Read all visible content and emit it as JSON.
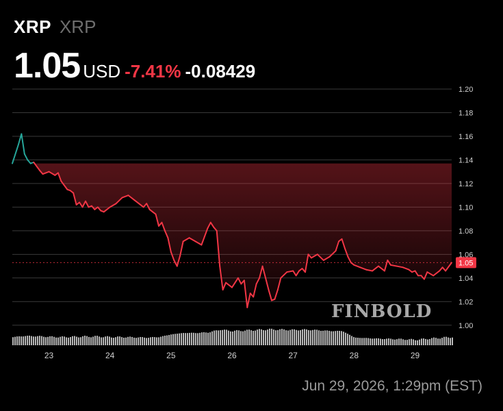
{
  "header": {
    "symbol": "XRP",
    "name": "XRP",
    "price": "1.05",
    "currency": "USD",
    "change_pct": "-7.41%",
    "change_abs": "-0.08429"
  },
  "timestamp": "Jun 29, 2026, 1:29pm (EST)",
  "watermark": "FINBOLD",
  "colors": {
    "background": "#000000",
    "down": "#f23645",
    "up": "#26a69a",
    "grid": "#3a3a3a",
    "volume": "#d9d9d9"
  },
  "chart_data": {
    "type": "line",
    "ylim": [
      0.99,
      1.2
    ],
    "yticks": [
      "1.20",
      "1.18",
      "1.16",
      "1.14",
      "1.12",
      "1.10",
      "1.08",
      "1.06",
      "1.04",
      "1.02",
      "1.00"
    ],
    "ytick_values": [
      1.2,
      1.18,
      1.16,
      1.14,
      1.12,
      1.1,
      1.08,
      1.06,
      1.04,
      1.02,
      1.0
    ],
    "xlim": [
      22.4,
      29.6
    ],
    "xticks": [
      "23",
      "24",
      "25",
      "26",
      "27",
      "28",
      "29"
    ],
    "xtick_values": [
      23,
      24,
      25,
      26,
      27,
      28,
      29
    ],
    "last_value": 1.053,
    "last_label": "1.05",
    "reference_value": 1.137,
    "grid": true,
    "series": [
      {
        "x": [
          22.4,
          22.5,
          22.55,
          22.6,
          22.65,
          22.7,
          22.75,
          22.85,
          22.9,
          23.0,
          23.1,
          23.15,
          23.2,
          23.3,
          23.35,
          23.4,
          23.45,
          23.5,
          23.55,
          23.6,
          23.65,
          23.7,
          23.75,
          23.8,
          23.85,
          23.9,
          24.0,
          24.1,
          24.2,
          24.3,
          24.4,
          24.5,
          24.55,
          24.6,
          24.65,
          24.7,
          24.75,
          24.8,
          24.85,
          24.9,
          24.95,
          25.0,
          25.05,
          25.1,
          25.15,
          25.2,
          25.3,
          25.4,
          25.5,
          25.55,
          25.6,
          25.65,
          25.7,
          25.75,
          25.8,
          25.85,
          25.9,
          26.0,
          26.1,
          26.15,
          26.2,
          26.25,
          26.3,
          26.35,
          26.4,
          26.45,
          26.5,
          26.55,
          26.6,
          26.65,
          26.7,
          26.75,
          26.8,
          26.9,
          27.0,
          27.05,
          27.1,
          27.15,
          27.2,
          27.25,
          27.3,
          27.4,
          27.5,
          27.6,
          27.7,
          27.75,
          27.8,
          27.85,
          27.9,
          27.95,
          28.0,
          28.1,
          28.2,
          28.3,
          28.4,
          28.5,
          28.55,
          28.6,
          28.7,
          28.8,
          28.9,
          28.95,
          29.0,
          29.05,
          29.1,
          29.15,
          29.2,
          29.3,
          29.4,
          29.45,
          29.5,
          29.6
        ],
        "y": [
          1.137,
          1.153,
          1.162,
          1.145,
          1.14,
          1.137,
          1.138,
          1.131,
          1.128,
          1.13,
          1.127,
          1.129,
          1.122,
          1.115,
          1.114,
          1.112,
          1.102,
          1.104,
          1.1,
          1.105,
          1.1,
          1.101,
          1.098,
          1.1,
          1.097,
          1.096,
          1.1,
          1.103,
          1.108,
          1.11,
          1.106,
          1.102,
          1.1,
          1.103,
          1.098,
          1.096,
          1.094,
          1.084,
          1.087,
          1.08,
          1.074,
          1.062,
          1.055,
          1.05,
          1.059,
          1.071,
          1.074,
          1.071,
          1.068,
          1.075,
          1.082,
          1.087,
          1.083,
          1.08,
          1.05,
          1.03,
          1.036,
          1.032,
          1.04,
          1.035,
          1.038,
          1.015,
          1.027,
          1.024,
          1.035,
          1.04,
          1.05,
          1.04,
          1.03,
          1.021,
          1.022,
          1.03,
          1.04,
          1.045,
          1.046,
          1.042,
          1.046,
          1.048,
          1.045,
          1.06,
          1.057,
          1.06,
          1.055,
          1.058,
          1.063,
          1.071,
          1.073,
          1.065,
          1.058,
          1.053,
          1.051,
          1.049,
          1.047,
          1.046,
          1.05,
          1.046,
          1.055,
          1.051,
          1.05,
          1.049,
          1.047,
          1.045,
          1.046,
          1.042,
          1.042,
          1.039,
          1.045,
          1.042,
          1.046,
          1.049,
          1.046,
          1.053
        ]
      }
    ],
    "volume": {
      "x": [
        22.4,
        22.6,
        22.8,
        23.0,
        23.2,
        23.4,
        23.6,
        23.8,
        24.0,
        24.2,
        24.4,
        24.6,
        24.8,
        25.0,
        25.2,
        25.4,
        25.6,
        25.8,
        26.0,
        26.2,
        26.4,
        26.6,
        26.8,
        27.0,
        27.2,
        27.4,
        27.6,
        27.8,
        28.0,
        28.2,
        28.4,
        28.6,
        28.8,
        29.0,
        29.2,
        29.4,
        29.6
      ],
      "values": [
        0.3,
        0.34,
        0.33,
        0.31,
        0.3,
        0.31,
        0.32,
        0.32,
        0.3,
        0.3,
        0.29,
        0.28,
        0.3,
        0.4,
        0.45,
        0.45,
        0.47,
        0.57,
        0.52,
        0.54,
        0.56,
        0.58,
        0.57,
        0.56,
        0.57,
        0.55,
        0.52,
        0.52,
        0.28,
        0.26,
        0.24,
        0.23,
        0.22,
        0.2,
        0.24,
        0.27,
        0.3
      ]
    }
  }
}
